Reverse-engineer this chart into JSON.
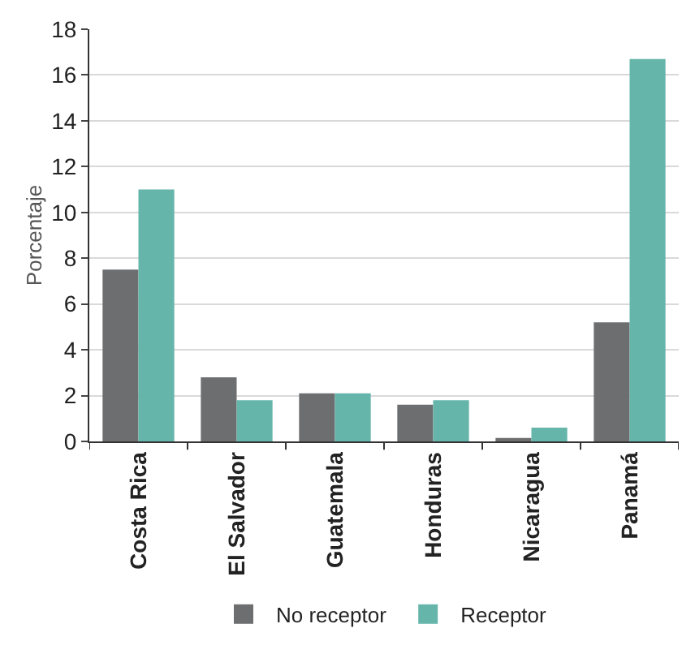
{
  "chart_data": {
    "type": "bar",
    "ylabel": "Porcentaje",
    "categories": [
      "Costa Rica",
      "El Salvador",
      "Guatemala",
      "Honduras",
      "Nicaragua",
      "Panamá"
    ],
    "series": [
      {
        "name": "No receptor",
        "color": "#6d6e70",
        "values": [
          7.5,
          2.8,
          2.1,
          1.6,
          0.15,
          5.2
        ]
      },
      {
        "name": "Receptor",
        "color": "#66b5ab",
        "values": [
          11.0,
          1.8,
          2.1,
          1.8,
          0.6,
          16.7
        ]
      }
    ],
    "ylim": [
      0,
      18
    ],
    "yticks": [
      0,
      2,
      4,
      6,
      8,
      10,
      12,
      14,
      16,
      18
    ],
    "grid": "y",
    "legend": "bottom"
  }
}
